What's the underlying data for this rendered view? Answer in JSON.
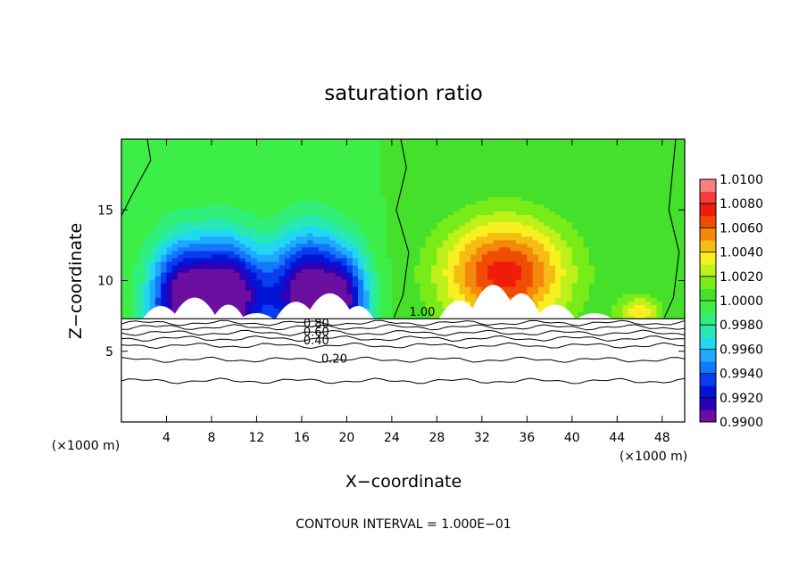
{
  "chart_data": {
    "type": "heatmap",
    "title": "saturation ratio",
    "xlabel": "X−coordinate",
    "ylabel": "Z−coordinate",
    "x_unit_left": "(×1000 m)",
    "x_unit_right": "(×1000 m)",
    "footer": "CONTOUR INTERVAL = 1.000E−01",
    "xlim": [
      0,
      50
    ],
    "ylim": [
      0,
      20
    ],
    "x_ticks": [
      4,
      8,
      12,
      16,
      20,
      24,
      28,
      32,
      36,
      40,
      44,
      48
    ],
    "x_tick_labels": [
      "4",
      "8",
      "12",
      "16",
      "20",
      "24",
      "28",
      "32",
      "36",
      "40",
      "44",
      "48"
    ],
    "y_ticks": [
      5,
      10,
      15
    ],
    "y_tick_labels": [
      "5",
      "10",
      "15"
    ],
    "colorbar": {
      "levels": [
        0.99,
        0.991,
        0.992,
        0.993,
        0.994,
        0.995,
        0.996,
        0.997,
        0.998,
        0.999,
        1.0,
        1.001,
        1.002,
        1.003,
        1.004,
        1.005,
        1.006,
        1.007,
        1.008,
        1.009,
        1.01
      ],
      "labels": [
        "0.9900",
        "0.9920",
        "0.9940",
        "0.9960",
        "0.9980",
        "1.0000",
        "1.0020",
        "1.0040",
        "1.0060",
        "1.0080",
        "1.0100"
      ],
      "label_values": [
        0.99,
        0.992,
        0.994,
        0.996,
        0.998,
        1.0,
        1.002,
        1.004,
        1.006,
        1.008,
        1.01
      ],
      "colors": [
        "#6a0fa0",
        "#2a00b8",
        "#0014d8",
        "#0a3cf0",
        "#1478ff",
        "#1eaaff",
        "#22d8f0",
        "#28e8b4",
        "#30f07a",
        "#3cee46",
        "#44e02c",
        "#78ec18",
        "#bef01a",
        "#f8f020",
        "#f6bc14",
        "#f4880a",
        "#f04c06",
        "#f01c0a",
        "#f43c3c",
        "#f88080"
      ]
    },
    "boundary_height": 7.3,
    "background_level": 1.0,
    "anomalies": [
      {
        "x": 5.5,
        "z": 8.6,
        "sx": 3.0,
        "sz": 4.2,
        "amp": -0.0105
      },
      {
        "x": 9.5,
        "z": 8.9,
        "sx": 2.6,
        "sz": 4.2,
        "amp": -0.0085
      },
      {
        "x": 16.5,
        "z": 8.9,
        "sx": 3.2,
        "sz": 4.4,
        "amp": -0.0105
      },
      {
        "x": 20.0,
        "z": 8.6,
        "sx": 2.2,
        "sz": 3.6,
        "amp": -0.0065
      },
      {
        "x": 12.0,
        "z": 9.0,
        "sx": 2.5,
        "sz": 3.2,
        "amp": -0.003
      },
      {
        "x": 34.0,
        "z": 10.5,
        "sx": 5.5,
        "sz": 3.8,
        "amp": 0.0075
      },
      {
        "x": 46.0,
        "z": 7.8,
        "sx": 2.0,
        "sz": 1.2,
        "amp": 0.0035
      }
    ],
    "contours": {
      "overlay_levels": [
        0.2,
        0.4,
        0.5,
        0.6,
        0.7,
        0.8,
        0.9
      ],
      "overlay_heights": [
        2.9,
        4.4,
        5.4,
        5.9,
        6.3,
        6.7,
        7.0
      ],
      "labels": [
        {
          "text": "0.20",
          "x": 18.9,
          "z": 4.2
        },
        {
          "text": "0.40",
          "x": 17.3,
          "z": 5.5
        },
        {
          "text": "0.60",
          "x": 17.3,
          "z": 6.1
        },
        {
          "text": "0.80",
          "x": 17.3,
          "z": 6.7
        },
        {
          "text": "1.00",
          "x": 26.7,
          "z": 7.5
        }
      ]
    },
    "terrain_caps": [
      {
        "x": 3.5,
        "h": 0.9,
        "w": 1.6
      },
      {
        "x": 6.5,
        "h": 1.5,
        "w": 2.0
      },
      {
        "x": 9.5,
        "h": 1.0,
        "w": 1.4
      },
      {
        "x": 12.0,
        "h": 0.4,
        "w": 1.5
      },
      {
        "x": 15.5,
        "h": 1.2,
        "w": 1.8
      },
      {
        "x": 18.5,
        "h": 1.8,
        "w": 2.2
      },
      {
        "x": 21.0,
        "h": 0.9,
        "w": 1.4
      },
      {
        "x": 30.0,
        "h": 1.3,
        "w": 1.8
      },
      {
        "x": 33.0,
        "h": 2.4,
        "w": 2.2
      },
      {
        "x": 35.5,
        "h": 1.8,
        "w": 1.8
      },
      {
        "x": 38.5,
        "h": 1.0,
        "w": 1.8
      },
      {
        "x": 42.0,
        "h": 0.4,
        "w": 1.6
      }
    ]
  }
}
